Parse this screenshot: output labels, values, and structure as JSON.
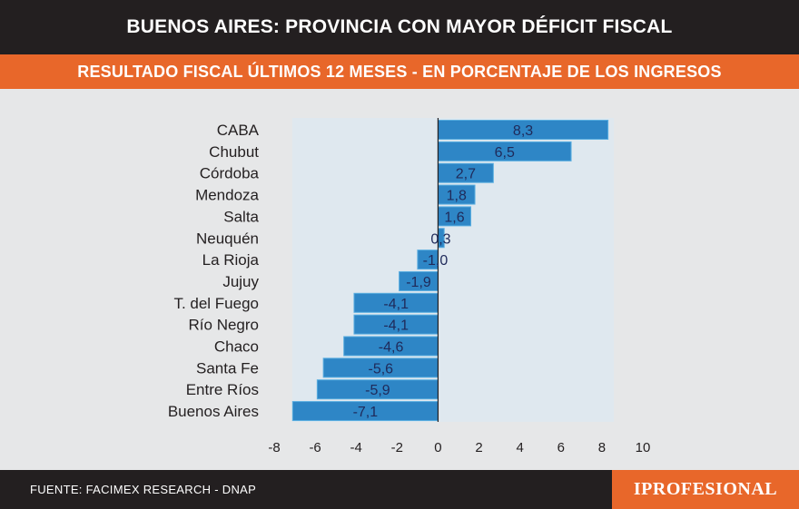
{
  "header": {
    "title": "BUENOS AIRES: PROVINCIA CON MAYOR DÉFICIT FISCAL",
    "subtitle": "RESULTADO FISCAL ÚLTIMOS 12 MESES - EN PORCENTAJE DE LOS INGRESOS"
  },
  "footer": {
    "source": "FUENTE: FACIMEX RESEARCH - DNAP",
    "brand": "IPROFESIONAL"
  },
  "colors": {
    "bar_fill": "#2e86c6",
    "bar_stroke": "#5aaee0",
    "plot_bg": "#dfe8ef",
    "label_text": "#1f2a5a",
    "axis_text": "#231f20",
    "accent": "#e8672a",
    "dark": "#231f20"
  },
  "chart_data": {
    "type": "bar",
    "orientation": "horizontal",
    "title": "RESULTADO FISCAL ÚLTIMOS 12 MESES - EN PORCENTAJE DE LOS INGRESOS",
    "categories": [
      "CABA",
      "Chubut",
      "Córdoba",
      "Mendoza",
      "Salta",
      "Neuquén",
      "La Rioja",
      "Jujuy",
      "T. del Fuego",
      "Río Negro",
      "Chaco",
      "Santa Fe",
      "Entre Ríos",
      "Buenos Aires"
    ],
    "values": [
      8.3,
      6.5,
      2.7,
      1.8,
      1.6,
      0.3,
      -1.0,
      -1.9,
      -4.1,
      -4.1,
      -4.6,
      -5.6,
      -5.9,
      -7.1
    ],
    "value_labels": [
      "8,3",
      "6,5",
      "2,7",
      "1,8",
      "1,6",
      "0,3",
      "-1,0",
      "-1,9",
      "-4,1",
      "-4,1",
      "-4,6",
      "-5,6",
      "-5,9",
      "-7,1"
    ],
    "xlim": [
      -8,
      10
    ],
    "xticks": [
      -8,
      -6,
      -4,
      -2,
      0,
      2,
      4,
      6,
      8,
      10
    ],
    "xlabel": "",
    "ylabel": "",
    "grid": false,
    "legend": "none"
  }
}
